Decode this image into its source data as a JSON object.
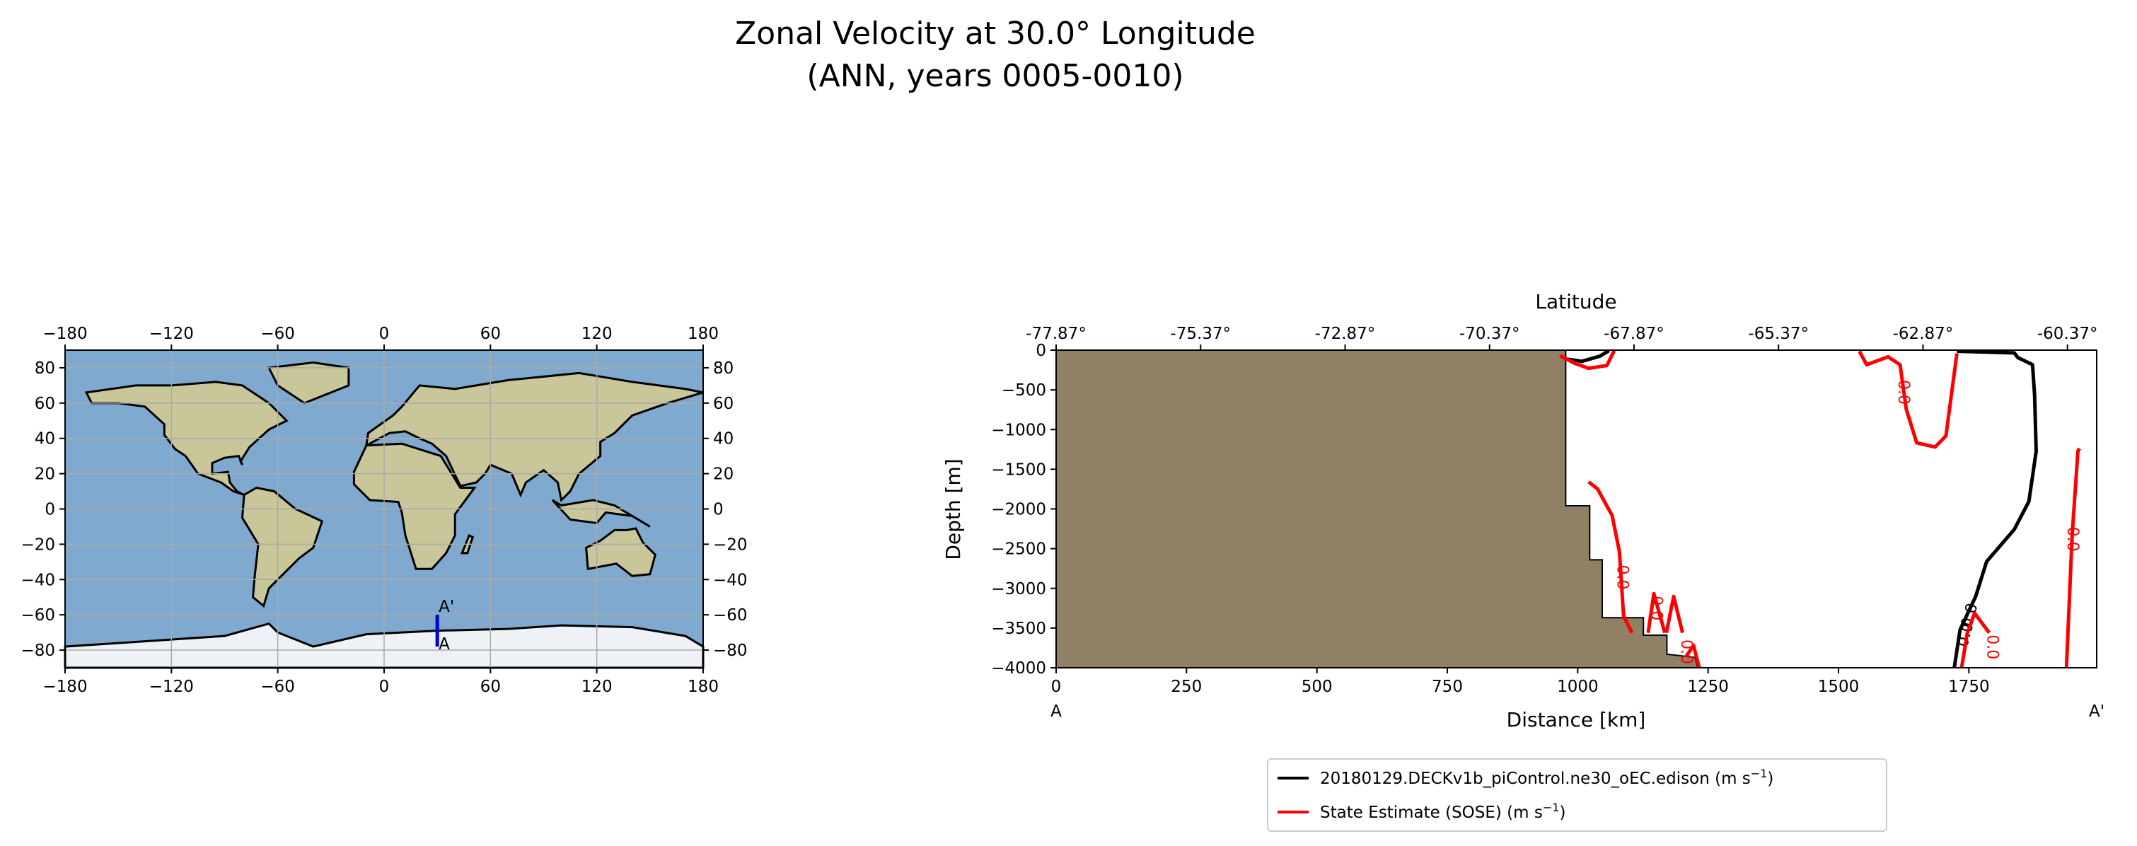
{
  "title": {
    "line1": "Zonal Velocity at 30.0° Longitude",
    "line2": "(ANN, years 0005-0010)"
  },
  "map": {
    "lon_ticks": [
      "−180",
      "−120",
      "−60",
      "0",
      "60",
      "120",
      "180"
    ],
    "lon_values": [
      -180,
      -120,
      -60,
      0,
      60,
      120,
      180
    ],
    "lat_ticks": [
      "80",
      "60",
      "40",
      "20",
      "0",
      "−20",
      "−40",
      "−60",
      "−80"
    ],
    "lat_values": [
      80,
      60,
      40,
      20,
      0,
      -20,
      -40,
      -60,
      -80
    ],
    "section": {
      "lon": 30,
      "lat_start": -78,
      "lat_end": -60,
      "start_label": "A",
      "end_label": "A'",
      "color": "#0000cc"
    },
    "ocean_color": "#7fa9cf",
    "land_color": "#c9c79a",
    "ice_color": "#eef2f6",
    "coastlines": [
      [
        [
          -168,
          66
        ],
        [
          -140,
          70
        ],
        [
          -120,
          70
        ],
        [
          -95,
          72
        ],
        [
          -80,
          70
        ],
        [
          -65,
          60
        ],
        [
          -55,
          50
        ],
        [
          -65,
          45
        ],
        [
          -76,
          35
        ],
        [
          -81,
          27
        ],
        [
          -80,
          25
        ],
        [
          -82,
          30
        ],
        [
          -90,
          29
        ],
        [
          -97,
          26
        ],
        [
          -97,
          20
        ],
        [
          -88,
          21
        ],
        [
          -87,
          15
        ],
        [
          -83,
          10
        ],
        [
          -79,
          8
        ],
        [
          -85,
          10
        ],
        [
          -92,
          15
        ],
        [
          -105,
          20
        ],
        [
          -112,
          30
        ],
        [
          -118,
          34
        ],
        [
          -124,
          42
        ],
        [
          -124,
          48
        ],
        [
          -135,
          58
        ],
        [
          -150,
          60
        ],
        [
          -165,
          60
        ],
        [
          -168,
          66
        ]
      ],
      [
        [
          -79,
          8
        ],
        [
          -72,
          12
        ],
        [
          -62,
          10
        ],
        [
          -50,
          0
        ],
        [
          -35,
          -7
        ],
        [
          -40,
          -22
        ],
        [
          -48,
          -28
        ],
        [
          -58,
          -38
        ],
        [
          -65,
          -45
        ],
        [
          -68,
          -55
        ],
        [
          -74,
          -50
        ],
        [
          -73,
          -38
        ],
        [
          -71,
          -20
        ],
        [
          -80,
          -5
        ],
        [
          -79,
          8
        ]
      ],
      [
        [
          -45,
          60
        ],
        [
          -20,
          70
        ],
        [
          -20,
          80
        ],
        [
          -40,
          83
        ],
        [
          -65,
          80
        ],
        [
          -60,
          70
        ],
        [
          -45,
          60
        ]
      ],
      [
        [
          -10,
          36
        ],
        [
          -17,
          21
        ],
        [
          -17,
          14
        ],
        [
          -8,
          5
        ],
        [
          8,
          4
        ],
        [
          10,
          -2
        ],
        [
          12,
          -15
        ],
        [
          18,
          -34
        ],
        [
          27,
          -34
        ],
        [
          35,
          -25
        ],
        [
          40,
          -15
        ],
        [
          40,
          -3
        ],
        [
          51,
          12
        ],
        [
          43,
          12
        ],
        [
          32,
          30
        ],
        [
          10,
          37
        ],
        [
          -10,
          36
        ]
      ],
      [
        [
          -10,
          36
        ],
        [
          -9,
          43
        ],
        [
          -2,
          48
        ],
        [
          5,
          53
        ],
        [
          10,
          58
        ],
        [
          20,
          70
        ],
        [
          40,
          68
        ],
        [
          70,
          73
        ],
        [
          110,
          77
        ],
        [
          140,
          72
        ],
        [
          170,
          68
        ],
        [
          180,
          66
        ],
        [
          160,
          60
        ],
        [
          140,
          53
        ],
        [
          130,
          43
        ],
        [
          122,
          38
        ],
        [
          122,
          30
        ],
        [
          110,
          20
        ],
        [
          105,
          10
        ],
        [
          100,
          5
        ],
        [
          98,
          15
        ],
        [
          90,
          22
        ],
        [
          80,
          15
        ],
        [
          77,
          8
        ],
        [
          72,
          20
        ],
        [
          60,
          25
        ],
        [
          57,
          20
        ],
        [
          52,
          15
        ],
        [
          43,
          13
        ],
        [
          35,
          30
        ],
        [
          27,
          37
        ],
        [
          20,
          40
        ],
        [
          12,
          44
        ],
        [
          3,
          43
        ],
        [
          -10,
          36
        ]
      ],
      [
        [
          114,
          -22
        ],
        [
          122,
          -18
        ],
        [
          130,
          -12
        ],
        [
          137,
          -12
        ],
        [
          142,
          -11
        ],
        [
          146,
          -19
        ],
        [
          153,
          -26
        ],
        [
          150,
          -37
        ],
        [
          140,
          -38
        ],
        [
          131,
          -31
        ],
        [
          115,
          -34
        ],
        [
          114,
          -22
        ]
      ],
      [
        [
          44,
          -25
        ],
        [
          48,
          -15
        ],
        [
          50,
          -16
        ],
        [
          47,
          -25
        ],
        [
          44,
          -25
        ]
      ],
      [
        [
          95,
          5
        ],
        [
          105,
          -6
        ],
        [
          120,
          -8
        ],
        [
          125,
          -2
        ],
        [
          140,
          -4
        ],
        [
          150,
          -10
        ],
        [
          130,
          2
        ],
        [
          118,
          5
        ],
        [
          100,
          2
        ],
        [
          95,
          5
        ]
      ]
    ],
    "antarctica": [
      [
        -180,
        -84
      ],
      [
        -180,
        -78
      ],
      [
        -150,
        -76
      ],
      [
        -120,
        -74
      ],
      [
        -90,
        -72
      ],
      [
        -65,
        -65
      ],
      [
        -60,
        -70
      ],
      [
        -40,
        -78
      ],
      [
        -10,
        -71
      ],
      [
        30,
        -69
      ],
      [
        70,
        -68
      ],
      [
        100,
        -66
      ],
      [
        140,
        -67
      ],
      [
        170,
        -72
      ],
      [
        180,
        -78
      ],
      [
        180,
        -90
      ],
      [
        -180,
        -90
      ]
    ]
  },
  "chart_data": {
    "type": "contour",
    "title": "Zonal Velocity at 30.0° Longitude (ANN, years 0005-0010)",
    "xlabel": "Distance [km]",
    "ylabel": "Depth [m]",
    "top_xlabel": "Latitude",
    "xlim": [
      0,
      1995
    ],
    "ylim": [
      -4000,
      0
    ],
    "x_ticks": [
      "0",
      "250",
      "500",
      "750",
      "1000",
      "1250",
      "1500",
      "1750"
    ],
    "x_tick_values": [
      0,
      250,
      500,
      750,
      1000,
      1250,
      1500,
      1750
    ],
    "y_ticks": [
      "0",
      "−500",
      "−1000",
      "−1500",
      "−2000",
      "−2500",
      "−3000",
      "−3500",
      "−4000"
    ],
    "y_tick_values": [
      0,
      -500,
      -1000,
      -1500,
      -2000,
      -2500,
      -3000,
      -3500,
      -4000
    ],
    "top_ticks": [
      "-77.87°",
      "-75.37°",
      "-72.87°",
      "-70.37°",
      "-67.87°",
      "-65.37°",
      "-62.87°",
      "-60.37°"
    ],
    "top_tick_values": [
      0,
      277,
      554,
      831,
      1108,
      1385,
      1662,
      1939
    ],
    "end_labels": {
      "start": "A",
      "end": "A'"
    },
    "bathymetry_color": "#8f8066",
    "bathymetry": [
      [
        0,
        0
      ],
      [
        977,
        0
      ],
      [
        977,
        -1960
      ],
      [
        1023,
        -1960
      ],
      [
        1023,
        -2640
      ],
      [
        1047,
        -2640
      ],
      [
        1047,
        -3370
      ],
      [
        1126,
        -3370
      ],
      [
        1126,
        -3590
      ],
      [
        1171,
        -3590
      ],
      [
        1171,
        -3830
      ],
      [
        1225,
        -3870
      ],
      [
        1230,
        -4000
      ],
      [
        0,
        -4000
      ]
    ],
    "contour_level_label": "0.0",
    "series": [
      {
        "name": "20180129.DECKv1b_piControl.ne30_oEC.edison",
        "units": "m s",
        "color": "#000000",
        "lines": [
          [
            [
              1722,
              -4000
            ],
            [
              1733,
              -3524
            ],
            [
              1763,
              -3102
            ],
            [
              1784,
              -2663
            ],
            [
              1837,
              -2258
            ],
            [
              1865,
              -1906
            ],
            [
              1879,
              -1273
            ],
            [
              1876,
              -570
            ],
            [
              1872,
              -183
            ],
            [
              1844,
              -95
            ],
            [
              1837,
              -35
            ],
            [
              1727,
              -14
            ]
          ],
          [
            [
              980,
              -113
            ],
            [
              1008,
              -141
            ],
            [
              1042,
              -77
            ],
            [
              1060,
              -7
            ]
          ]
        ],
        "labels": [
          [
            1750,
            -3340,
            -75
          ],
          [
            1742,
            -3580,
            -75
          ]
        ]
      },
      {
        "name": "State Estimate (SOSE)",
        "units": "m s",
        "color": "#ff0000",
        "lines": [
          [
            [
              966,
              -70
            ],
            [
              994,
              -165
            ],
            [
              1021,
              -229
            ],
            [
              1056,
              -193
            ],
            [
              1070,
              -7
            ]
          ],
          [
            [
              1540,
              -14
            ],
            [
              1554,
              -183
            ],
            [
              1595,
              -84
            ],
            [
              1618,
              -183
            ],
            [
              1630,
              -746
            ],
            [
              1650,
              -1168
            ],
            [
              1685,
              -1220
            ],
            [
              1706,
              -1080
            ],
            [
              1727,
              -42
            ]
          ],
          [
            [
              1021,
              -1660
            ],
            [
              1038,
              -1748
            ],
            [
              1066,
              -2082
            ],
            [
              1080,
              -2540
            ],
            [
              1088,
              -3349
            ],
            [
              1104,
              -3560
            ]
          ],
          [
            [
              1135,
              -3560
            ],
            [
              1146,
              -3067
            ],
            [
              1167,
              -3560
            ]
          ],
          [
            [
              1170,
              -3560
            ],
            [
              1184,
              -3102
            ],
            [
              1201,
              -3560
            ]
          ],
          [
            [
              1208,
              -3858
            ],
            [
              1222,
              -3718
            ],
            [
              1233,
              -4000
            ]
          ],
          [
            [
              1736,
              -4000
            ],
            [
              1747,
              -3560
            ],
            [
              1761,
              -3313
            ],
            [
              1789,
              -3560
            ]
          ],
          [
            [
              1937,
              -4000
            ],
            [
              1948,
              -2329
            ],
            [
              1959,
              -1273
            ],
            [
              1962,
              -1238
            ]
          ]
        ],
        "labels": [
          [
            1626,
            -530,
            90
          ],
          [
            1087,
            -2860,
            90
          ],
          [
            1152,
            -3250,
            90
          ],
          [
            1210,
            -3800,
            90
          ],
          [
            1796,
            -3740,
            90
          ],
          [
            1950,
            -2380,
            90
          ]
        ]
      }
    ],
    "legend": {
      "position": "bottom-center",
      "entries": [
        {
          "label": "20180129.DECKv1b_piControl.ne30_oEC.edison (m s",
          "sup": "−1",
          "close": ")"
        },
        {
          "label": "State Estimate (SOSE) (m s",
          "sup": "−1",
          "close": ")"
        }
      ]
    }
  }
}
